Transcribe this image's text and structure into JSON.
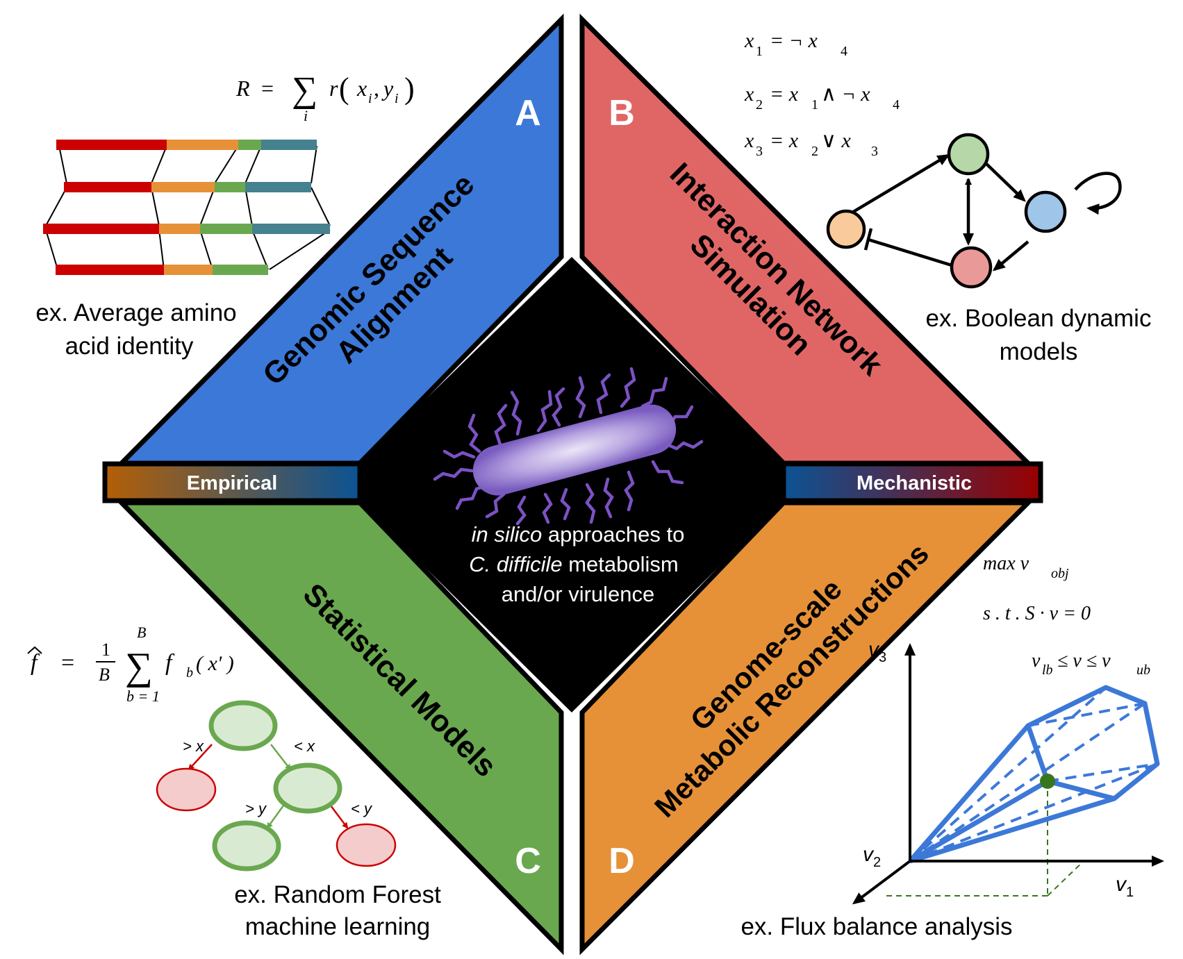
{
  "quadrants": {
    "a": {
      "letter": "A",
      "title_line1": "Genomic Sequence",
      "title_line2": "Alignment",
      "color": "#3b78d8"
    },
    "b": {
      "letter": "B",
      "title_line1": "Interaction Network",
      "title_line2": "Simulation",
      "color": "#e06666"
    },
    "c": {
      "letter": "C",
      "title": "Statistical Models",
      "color": "#6aa84f"
    },
    "d": {
      "letter": "D",
      "title_line1": "Genome-scale",
      "title_line2": "Metabolic Reconstructions",
      "color": "#e69138"
    }
  },
  "axis_bar": {
    "left_label": "Empirical",
    "right_label": "Mechanistic",
    "left_colors": [
      "#b45f06",
      "#0b5394"
    ],
    "right_colors": [
      "#0b5394",
      "#990000"
    ]
  },
  "center": {
    "line1_italic": "in silico",
    "line1_rest": " approaches to",
    "line2_italic": "C. difficile",
    "line2_rest": " metabolism",
    "line3": "and/or virulence"
  },
  "panel_a": {
    "formula_lhs": "R",
    "formula_eq": "=",
    "formula_sum": "∑",
    "formula_sub": "i",
    "formula_fn": "r",
    "formula_open": "(",
    "formula_x": "x",
    "formula_xsub": "i",
    "formula_comma": ",",
    "formula_y": "y",
    "formula_ysub": "i",
    "formula_close": ")",
    "caption_line1": "ex. Average amino",
    "caption_line2": "acid identity"
  },
  "panel_b": {
    "eq1": {
      "lhs": "x",
      "lhs_sub": "1",
      "rhs": "= ¬ x",
      "rhs_sub": "4"
    },
    "eq2": {
      "lhs": "x",
      "lhs_sub": "2",
      "rhs_a": "= x",
      "rhs_a_sub": "1",
      "rhs_b": "∧ ¬ x",
      "rhs_b_sub": "4"
    },
    "eq3": {
      "lhs": "x",
      "lhs_sub": "3",
      "rhs_a": "= x",
      "rhs_a_sub": "2",
      "rhs_b": "∨ x",
      "rhs_b_sub": "3"
    },
    "caption_line1": "ex. Boolean dynamic",
    "caption_line2": "models"
  },
  "panel_c": {
    "formula_hat": "f",
    "formula_eq": "=",
    "formula_num": "1",
    "formula_den": "B",
    "formula_sum": "∑",
    "formula_top": "B",
    "formula_bottom": "b = 1",
    "formula_fn": "f",
    "formula_fn_sub": "b",
    "formula_arg": "( x' )",
    "split_left_top": "> x",
    "split_right_top": "< x",
    "split_left_bottom": "> y",
    "split_right_bottom": "< y",
    "caption_line1": "ex. Random Forest",
    "caption_line2": "machine learning"
  },
  "panel_d": {
    "obj_max": "max v",
    "obj_sub": "obj",
    "constraint": "s . t . S · v = 0",
    "bounds_lb": "v",
    "bounds_lb_sub": "lb",
    "bounds_mid": "≤ v ≤ v",
    "bounds_ub_sub": "ub",
    "axis_v3": "v",
    "axis_v3_sub": "3",
    "axis_v2": "v",
    "axis_v2_sub": "2",
    "axis_v1": "v",
    "axis_v1_sub": "1",
    "caption": "ex. Flux balance analysis"
  }
}
